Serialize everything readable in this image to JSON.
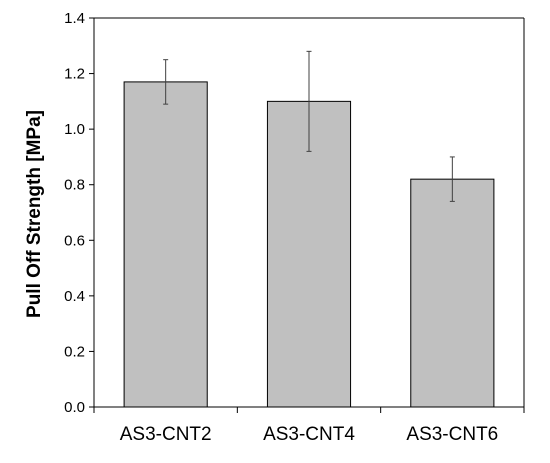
{
  "chart_data": {
    "type": "bar",
    "title": "",
    "xlabel": "",
    "ylabel": "Pull Off Strength [MPa]",
    "categories": [
      "AS3-CNT2",
      "AS3-CNT4",
      "AS3-CNT6"
    ],
    "values": [
      1.17,
      1.1,
      0.82
    ],
    "error_low": [
      1.09,
      0.92,
      0.74
    ],
    "error_high": [
      1.25,
      1.28,
      0.9
    ],
    "ylim": [
      0,
      1.4
    ],
    "yticks": [
      "0.0",
      "0.2",
      "0.4",
      "0.6",
      "0.8",
      "1.0",
      "1.2",
      "1.4"
    ],
    "grid": false,
    "legend": "none",
    "bar_color": "#c0c0c0",
    "bar_edge_color": "#000000",
    "error_bar_color": "#404040"
  }
}
